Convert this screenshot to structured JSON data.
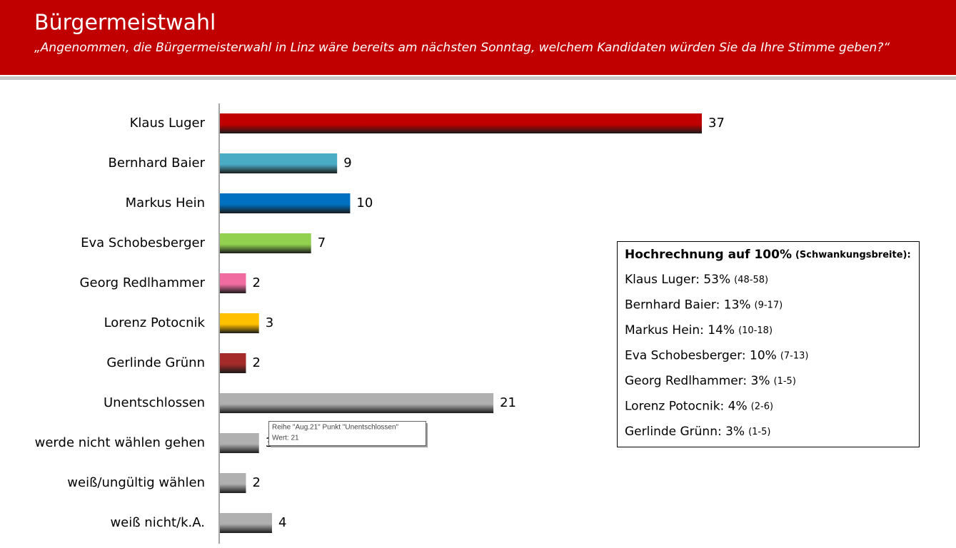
{
  "chart_data": {
    "type": "hbar",
    "title": "Bürgermeistwahl",
    "subtitle": "„Angenommen, die Bürgermeisterwahl in Linz wäre bereits am nächsten Sonntag, welchem Kandidaten würden Sie da Ihre Stimme geben?“",
    "categories": [
      "Klaus Luger",
      "Bernhard Baier",
      "Markus Hein",
      "Eva Schobesberger",
      "Georg Redlhammer",
      "Lorenz Potocnik",
      "Gerlinde Grünn",
      "Unentschlossen",
      "werde nicht wählen gehen",
      "weiß/ungültig wählen",
      "weiß nicht/k.A."
    ],
    "values": [
      37,
      9,
      10,
      7,
      2,
      3,
      2,
      21,
      3,
      2,
      4
    ],
    "colors": [
      "#c00000",
      "#4bacc6",
      "#0070c0",
      "#92d050",
      "#f06ca0",
      "#ffc000",
      "#a52a2a",
      "#b0b0b0",
      "#b0b0b0",
      "#b0b0b0",
      "#b0b0b0"
    ],
    "tooltip": {
      "line1": "Reihe \"Aug.21\" Punkt \"Unentschlossen\"",
      "line2": "Wert: 21"
    }
  },
  "info_box": {
    "title": "Hochrechnung auf 100%",
    "title_note": "(Schwankungsbreite):",
    "rows": [
      {
        "text": "Klaus Luger: 53%",
        "range": "(48-58)"
      },
      {
        "text": "Bernhard Baier: 13%",
        "range": "(9-17)"
      },
      {
        "text": "Markus Hein: 14%",
        "range": "(10-18)"
      },
      {
        "text": "Eva Schobesberger: 10%",
        "range": "(7-13)"
      },
      {
        "text": "Georg Redlhammer: 3%",
        "range": "(1-5)"
      },
      {
        "text": "Lorenz Potocnik: 4%",
        "range": "(2-6)"
      },
      {
        "text": "Gerlinde Grünn: 3%",
        "range": "(1-5)"
      }
    ]
  }
}
